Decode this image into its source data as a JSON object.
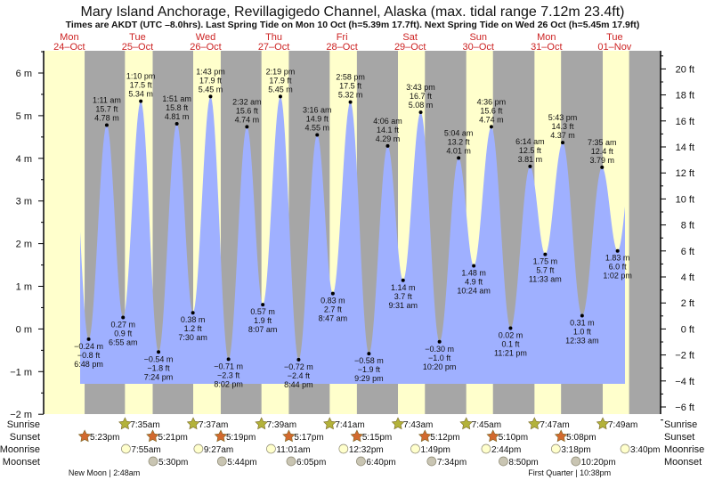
{
  "chart_data": {
    "type": "area",
    "title": "Mary Island Anchorage, Revillagigedo Channel, Alaska (max. tidal range 7.12m 23.4ft)",
    "subtitle": "Times are AKDT (UTC –8.0hrs). Last Spring Tide on Mon 10 Oct (h=5.39m 17.7ft). Next Spring Tide on Wed 26 Oct (h=5.45m 17.9ft)",
    "days": [
      {
        "dow": "Mon",
        "date": "24–Oct"
      },
      {
        "dow": "Tue",
        "date": "25–Oct"
      },
      {
        "dow": "Wed",
        "date": "26–Oct"
      },
      {
        "dow": "Thu",
        "date": "27–Oct"
      },
      {
        "dow": "Fri",
        "date": "28–Oct"
      },
      {
        "dow": "Sat",
        "date": "29–Oct"
      },
      {
        "dow": "Sun",
        "date": "30–Oct"
      },
      {
        "dow": "Mon",
        "date": "31–Oct"
      },
      {
        "dow": "Tue",
        "date": "01–Nov"
      }
    ],
    "y_left": {
      "unit": "m",
      "range": [
        -2,
        6.5
      ],
      "ticks": [
        "−2 m",
        "−1 m",
        "0 m",
        "1 m",
        "2 m",
        "3 m",
        "4 m",
        "5 m",
        "6 m"
      ],
      "tick_values": [
        -2,
        -1,
        0,
        1,
        2,
        3,
        4,
        5,
        6
      ]
    },
    "y_right": {
      "unit": "ft",
      "ticks": [
        "−6 ft",
        "−4 ft",
        "−2 ft",
        "0 ft",
        "2 ft",
        "4 ft",
        "6 ft",
        "8 ft",
        "10 ft",
        "12 ft",
        "14 ft",
        "16 ft",
        "18 ft",
        "20 ft"
      ],
      "tick_values": [
        -6,
        -4,
        -2,
        0,
        2,
        4,
        6,
        8,
        10,
        12,
        14,
        16,
        18,
        20
      ]
    },
    "tides": [
      {
        "day": 0,
        "time": "6:48 pm",
        "m": "−0.24 m",
        "ft": "−0.8 ft",
        "value": -0.24,
        "type": "low"
      },
      {
        "day": 1,
        "time": "1:11 am",
        "m": "4.78 m",
        "ft": "15.7 ft",
        "value": 4.78,
        "type": "high"
      },
      {
        "day": 1,
        "time": "6:55 am",
        "m": "0.27 m",
        "ft": "0.9 ft",
        "value": 0.27,
        "type": "low"
      },
      {
        "day": 1,
        "time": "1:10 pm",
        "m": "5.34 m",
        "ft": "17.5 ft",
        "value": 5.34,
        "type": "high"
      },
      {
        "day": 1,
        "time": "7:24 pm",
        "m": "−0.54 m",
        "ft": "−1.8 ft",
        "value": -0.54,
        "type": "low"
      },
      {
        "day": 2,
        "time": "1:51 am",
        "m": "4.81 m",
        "ft": "15.8 ft",
        "value": 4.81,
        "type": "high"
      },
      {
        "day": 2,
        "time": "7:30 am",
        "m": "0.38 m",
        "ft": "1.2 ft",
        "value": 0.38,
        "type": "low"
      },
      {
        "day": 2,
        "time": "1:43 pm",
        "m": "5.45 m",
        "ft": "17.9 ft",
        "value": 5.45,
        "type": "high"
      },
      {
        "day": 2,
        "time": "8:02 pm",
        "m": "−0.71 m",
        "ft": "−2.3 ft",
        "value": -0.71,
        "type": "low"
      },
      {
        "day": 3,
        "time": "2:32 am",
        "m": "4.74 m",
        "ft": "15.6 ft",
        "value": 4.74,
        "type": "high"
      },
      {
        "day": 3,
        "time": "8:07 am",
        "m": "0.57 m",
        "ft": "1.9 ft",
        "value": 0.57,
        "type": "low"
      },
      {
        "day": 3,
        "time": "2:19 pm",
        "m": "5.45 m",
        "ft": "17.9 ft",
        "value": 5.45,
        "type": "high"
      },
      {
        "day": 3,
        "time": "8:44 pm",
        "m": "−0.72 m",
        "ft": "−2.4 ft",
        "value": -0.72,
        "type": "low"
      },
      {
        "day": 4,
        "time": "3:16 am",
        "m": "4.55 m",
        "ft": "14.9 ft",
        "value": 4.55,
        "type": "high"
      },
      {
        "day": 4,
        "time": "8:47 am",
        "m": "0.83 m",
        "ft": "2.7 ft",
        "value": 0.83,
        "type": "low"
      },
      {
        "day": 4,
        "time": "2:58 pm",
        "m": "5.32 m",
        "ft": "17.5 ft",
        "value": 5.32,
        "type": "high"
      },
      {
        "day": 4,
        "time": "9:29 pm",
        "m": "−0.58 m",
        "ft": "−1.9 ft",
        "value": -0.58,
        "type": "low"
      },
      {
        "day": 5,
        "time": "4:06 am",
        "m": "4.29 m",
        "ft": "14.1 ft",
        "value": 4.29,
        "type": "high"
      },
      {
        "day": 5,
        "time": "9:31 am",
        "m": "1.14 m",
        "ft": "3.7 ft",
        "value": 1.14,
        "type": "low"
      },
      {
        "day": 5,
        "time": "3:43 pm",
        "m": "5.08 m",
        "ft": "16.7 ft",
        "value": 5.08,
        "type": "high"
      },
      {
        "day": 5,
        "time": "10:20 pm",
        "m": "−0.30 m",
        "ft": "−1.0 ft",
        "value": -0.3,
        "type": "low"
      },
      {
        "day": 6,
        "time": "5:04 am",
        "m": "4.01 m",
        "ft": "13.2 ft",
        "value": 4.01,
        "type": "high"
      },
      {
        "day": 6,
        "time": "10:24 am",
        "m": "1.48 m",
        "ft": "4.9 ft",
        "value": 1.48,
        "type": "low"
      },
      {
        "day": 6,
        "time": "4:36 pm",
        "m": "4.74 m",
        "ft": "15.6 ft",
        "value": 4.74,
        "type": "high"
      },
      {
        "day": 6,
        "time": "11:21 pm",
        "m": "0.02 m",
        "ft": "0.1 ft",
        "value": 0.02,
        "type": "low"
      },
      {
        "day": 7,
        "time": "6:14 am",
        "m": "3.81 m",
        "ft": "12.5 ft",
        "value": 3.81,
        "type": "high"
      },
      {
        "day": 7,
        "time": "11:33 am",
        "m": "1.75 m",
        "ft": "5.7 ft",
        "value": 1.75,
        "type": "low"
      },
      {
        "day": 7,
        "time": "5:43 pm",
        "m": "4.37 m",
        "ft": "14.3 ft",
        "value": 4.37,
        "type": "high"
      },
      {
        "day": 8,
        "time": "12:33 am",
        "m": "0.31 m",
        "ft": "1.0 ft",
        "value": 0.31,
        "type": "low"
      },
      {
        "day": 8,
        "time": "7:35 am",
        "m": "3.79 m",
        "ft": "12.4 ft",
        "value": 3.79,
        "type": "high"
      },
      {
        "day": 8,
        "time": "1:02 pm",
        "m": "1.83 m",
        "ft": "6.0 ft",
        "value": 1.83,
        "type": "low"
      }
    ],
    "rows": [
      {
        "label": "Sunrise",
        "kind": "sunrise",
        "events": [
          {
            "day": 1,
            "time": "7:35am"
          },
          {
            "day": 2,
            "time": "7:37am"
          },
          {
            "day": 3,
            "time": "7:39am"
          },
          {
            "day": 4,
            "time": "7:41am"
          },
          {
            "day": 5,
            "time": "7:43am"
          },
          {
            "day": 6,
            "time": "7:45am"
          },
          {
            "day": 7,
            "time": "7:47am"
          },
          {
            "day": 8,
            "time": "7:49am"
          }
        ]
      },
      {
        "label": "Sunset",
        "kind": "sunset",
        "events": [
          {
            "day": 0,
            "time": "5:23pm"
          },
          {
            "day": 1,
            "time": "5:21pm"
          },
          {
            "day": 2,
            "time": "5:19pm"
          },
          {
            "day": 3,
            "time": "5:17pm"
          },
          {
            "day": 4,
            "time": "5:15pm"
          },
          {
            "day": 5,
            "time": "5:12pm"
          },
          {
            "day": 6,
            "time": "5:10pm"
          },
          {
            "day": 7,
            "time": "5:08pm"
          }
        ]
      },
      {
        "label": "Moonrise",
        "kind": "moonrise",
        "events": [
          {
            "day": 1,
            "time": "7:55am"
          },
          {
            "day": 2,
            "time": "9:27am"
          },
          {
            "day": 3,
            "time": "11:01am"
          },
          {
            "day": 4,
            "time": "12:32pm"
          },
          {
            "day": 5,
            "time": "1:49pm"
          },
          {
            "day": 6,
            "time": "2:44pm"
          },
          {
            "day": 7,
            "time": "3:18pm"
          },
          {
            "day": 8,
            "time": "3:40pm"
          }
        ]
      },
      {
        "label": "Moonset",
        "kind": "moonset",
        "events": [
          {
            "day": 1,
            "time": "5:30pm"
          },
          {
            "day": 2,
            "time": "5:44pm"
          },
          {
            "day": 3,
            "time": "6:05pm"
          },
          {
            "day": 4,
            "time": "6:40pm"
          },
          {
            "day": 5,
            "time": "7:34pm"
          },
          {
            "day": 6,
            "time": "8:50pm"
          },
          {
            "day": 7,
            "time": "10:20pm"
          }
        ]
      }
    ],
    "moon_phases": [
      {
        "day": 1,
        "time": "2:48am",
        "text": "New Moon | 2:48am"
      },
      {
        "day": 7,
        "time": "10:38pm",
        "text": "First Quarter | 10:38pm"
      }
    ]
  },
  "colors": {
    "day": "#ffffcc",
    "night": "#a6a6a6",
    "water": "#9fb0ff",
    "day_label": "#cc2222",
    "sunrise": "#b3b23a",
    "sunset": "#d2692e",
    "moonrise": "#ffffcc",
    "moonset": "#c9c5b3"
  }
}
